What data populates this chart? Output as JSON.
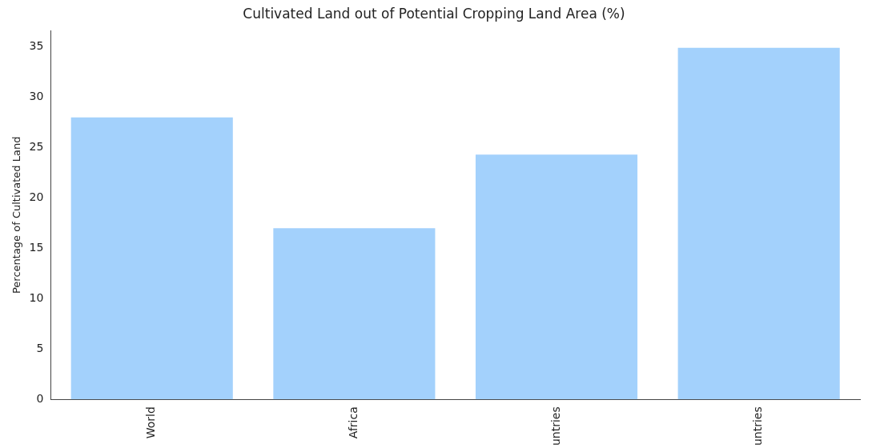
{
  "chart_data": {
    "type": "bar",
    "title": "Cultivated Land out of Potential Cropping Land Area (%)",
    "ylabel": "Percentage of Cultivated Land",
    "categories": [
      "World",
      "Africa",
      "untries",
      "untries"
    ],
    "values": [
      28,
      17,
      24.3,
      34.9
    ],
    "color": "#a3d1fc",
    "ylim": [
      0,
      36.6
    ],
    "yticks": [
      0,
      5,
      10,
      15,
      20,
      25,
      30,
      35
    ],
    "grid": false,
    "legend": false
  }
}
